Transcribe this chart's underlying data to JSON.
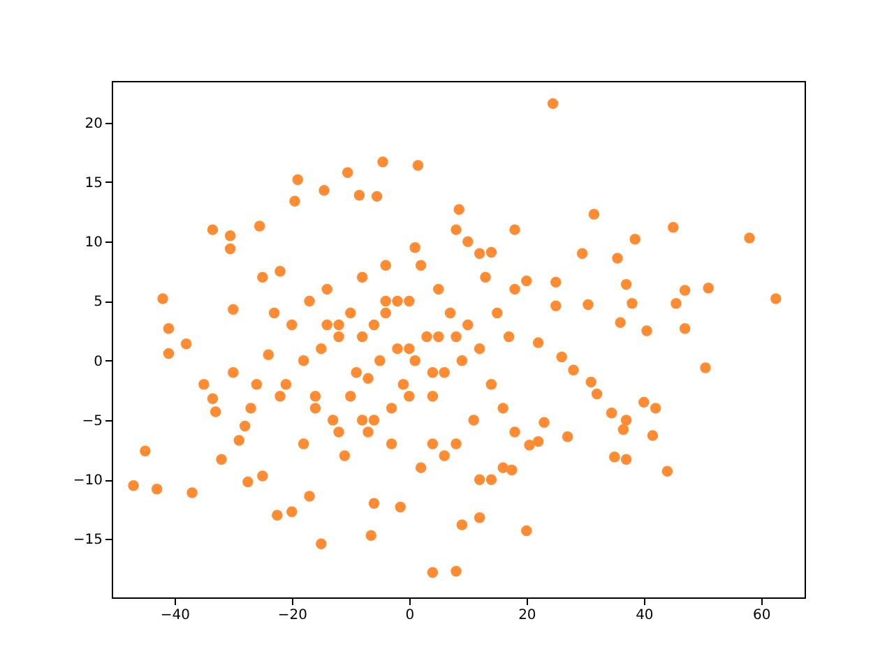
{
  "chart_data": {
    "type": "scatter",
    "marker": "circle",
    "grid": false,
    "xlim": [
      -50.7,
      67.4
    ],
    "ylim": [
      -19.9,
      23.5
    ],
    "xticks": [
      -40,
      -20,
      0,
      20,
      40,
      60
    ],
    "yticks": [
      -15,
      -10,
      -5,
      0,
      5,
      10,
      15,
      20
    ],
    "series": [
      {
        "color": "#ff8c33",
        "x": [
          -47,
          -45,
          -43,
          -37,
          -42,
          -41,
          -41,
          -38,
          -33.5,
          -30.5,
          -30.5,
          -25.5,
          -32,
          -35,
          -33.5,
          -33,
          -29,
          -28,
          -27.5,
          -25,
          -22.5,
          -20,
          -17,
          -15,
          -6.5,
          -6,
          -1.5,
          4,
          8,
          9,
          12,
          20,
          17.5,
          24.5,
          8.5,
          1.5,
          -4.5,
          -19,
          -10.5,
          -14.5,
          -8.5,
          -19.5,
          -5.5,
          18,
          31.5,
          45,
          58,
          38.5,
          29.5,
          35.5,
          62.5,
          51,
          47,
          50.5,
          47,
          45.5,
          40.5,
          44,
          41.5,
          37,
          35,
          40,
          42,
          37,
          34.5,
          36.5,
          27,
          26,
          31,
          32,
          28,
          36,
          37,
          38,
          30.5,
          25,
          22,
          23,
          20.5,
          22,
          25,
          14,
          20,
          -30,
          -30,
          -27,
          -24,
          -22,
          -21,
          -20,
          -18,
          -17,
          -16,
          -15,
          -14,
          -13,
          -12,
          -11,
          -10,
          -9,
          -8,
          -7,
          -6,
          -5,
          -4,
          -3,
          -2,
          -1,
          0,
          1,
          2,
          3,
          4,
          5,
          6,
          7,
          8,
          9,
          10,
          11,
          12,
          13,
          14,
          15,
          16,
          17,
          18,
          -18,
          -14,
          -10,
          -6,
          -2,
          2,
          6,
          10,
          14,
          18,
          -16,
          -12,
          -8,
          -4,
          0,
          4,
          8,
          12,
          16,
          -12,
          -8,
          -4,
          0,
          4,
          8,
          12,
          -25,
          -26,
          -22,
          -23,
          5,
          -3,
          1,
          -7
        ],
        "values": [
          -10.5,
          -7.6,
          -10.8,
          -11.1,
          5.2,
          2.7,
          0.6,
          1.4,
          11,
          10.5,
          9.4,
          11.3,
          -8.3,
          -2,
          -3.2,
          -4.3,
          -6.7,
          -5.5,
          -10.2,
          -9.7,
          -13,
          -12.7,
          -11.4,
          -15.4,
          -14.7,
          -12,
          -12.3,
          -17.8,
          -17.7,
          -13.8,
          -13.2,
          -14.3,
          -9.2,
          21.6,
          12.7,
          16.4,
          16.7,
          15.2,
          15.8,
          14.3,
          13.9,
          13.4,
          13.8,
          11,
          12.3,
          11.2,
          10.3,
          10.2,
          9,
          8.6,
          5.2,
          6.1,
          5.9,
          -0.6,
          2.7,
          4.8,
          2.5,
          -9.3,
          -6.3,
          -8.3,
          -8.1,
          -3.5,
          -4,
          -5,
          -4.4,
          -5.8,
          -6.4,
          0.3,
          -1.8,
          -2.8,
          -0.8,
          3.2,
          6.4,
          4.8,
          4.7,
          4.6,
          -6.8,
          -5.2,
          -7.1,
          1.5,
          6.6,
          9.1,
          6.7,
          4.3,
          -1,
          -4,
          0.5,
          7.5,
          -2,
          3,
          -7,
          5,
          -3,
          1,
          6,
          -5,
          2,
          -8,
          4,
          -1,
          7,
          -6,
          3,
          0,
          8,
          -4,
          1,
          -2,
          5,
          0,
          -9,
          2,
          -3,
          6,
          -1,
          4,
          -7,
          0,
          3,
          -5,
          1,
          7,
          -2,
          4,
          -4,
          2,
          -6,
          0,
          3,
          -3,
          -5,
          5,
          8,
          -8,
          10,
          -10,
          6,
          -4,
          -6,
          2,
          4,
          -3,
          -7,
          2,
          9,
          -9,
          3,
          -5,
          5,
          1,
          -1,
          11,
          -10,
          7,
          -2,
          -3,
          4,
          2,
          -7,
          9.5,
          -1.5
        ]
      }
    ]
  }
}
